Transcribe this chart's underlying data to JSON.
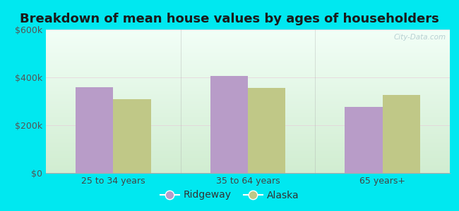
{
  "title": "Breakdown of mean house values by ages of householders",
  "categories": [
    "25 to 34 years",
    "35 to 64 years",
    "65 years+"
  ],
  "ridgeway_values": [
    360000,
    405000,
    275000
  ],
  "alaska_values": [
    310000,
    355000,
    325000
  ],
  "ylim": [
    0,
    600000
  ],
  "yticks": [
    0,
    200000,
    400000,
    600000
  ],
  "ytick_labels": [
    "$0",
    "$200k",
    "$400k",
    "$600k"
  ],
  "bar_color_ridgeway": "#b89cc8",
  "bar_color_alaska": "#c0c887",
  "legend_labels": [
    "Ridgeway",
    "Alaska"
  ],
  "background_outer": "#00e8f0",
  "bar_width": 0.28,
  "title_fontsize": 13,
  "tick_fontsize": 9,
  "legend_fontsize": 10
}
